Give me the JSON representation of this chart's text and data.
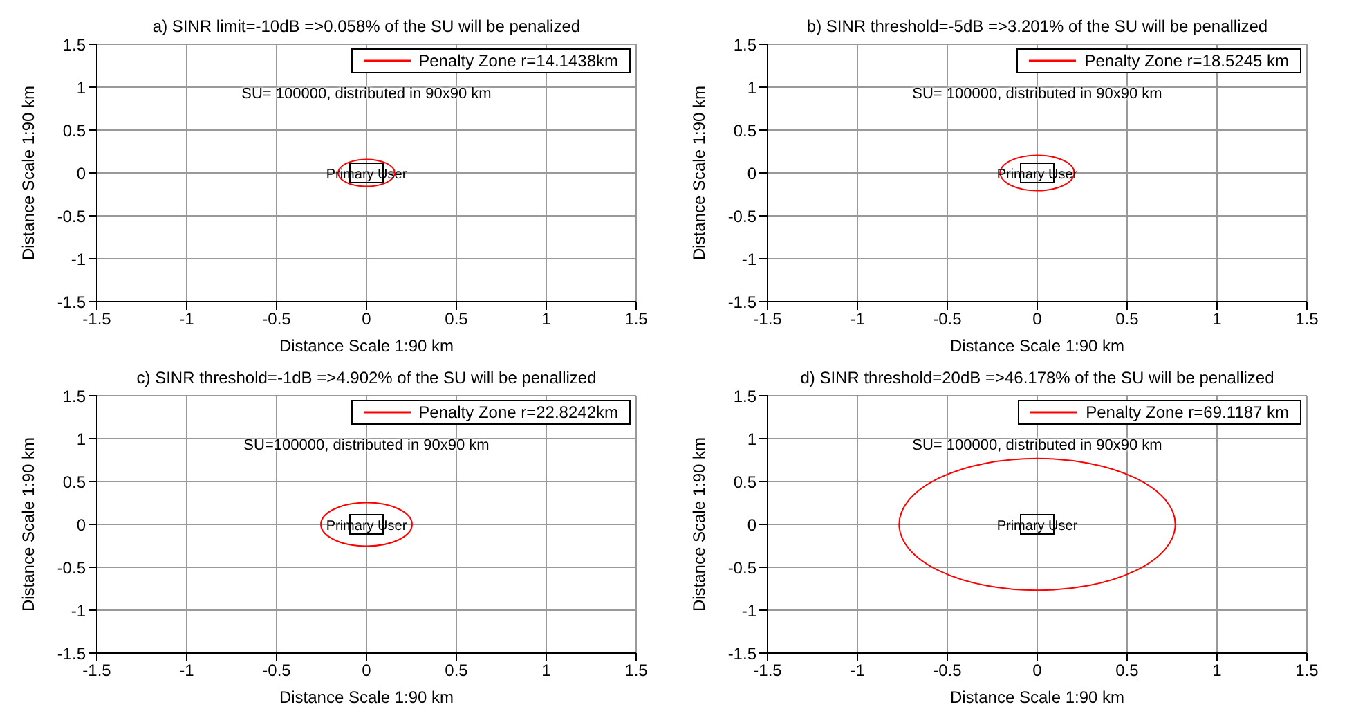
{
  "chart_data": [
    {
      "type": "line",
      "title": "a) SINR limit=-10dB =>0.058% of the SU will be penalized",
      "xlabel": "Distance Scale 1:90 km",
      "ylabel": "Distance Scale 1:90 km",
      "xlim": [
        -1.5,
        1.5
      ],
      "ylim": [
        -1.5,
        1.5
      ],
      "xticks": [
        -1.5,
        -1,
        -0.5,
        0,
        0.5,
        1,
        1.5
      ],
      "yticks": [
        -1.5,
        -1,
        -0.5,
        0,
        0.5,
        1,
        1.5
      ],
      "grid": true,
      "annotations": [
        "SU= 100000, distributed in 90x90 km",
        "Primary User",
        "Penalty Zone r=14.1438km"
      ]
    },
    {
      "type": "line",
      "title": "b) SINR threshold=-5dB =>3.201% of the SU will be penallized",
      "xlabel": "Distance Scale 1:90 km",
      "ylabel": "Distance Scale 1:90 km",
      "xlim": [
        -1.5,
        1.5
      ],
      "ylim": [
        -1.5,
        1.5
      ],
      "xticks": [
        -1.5,
        -1,
        -0.5,
        0,
        0.5,
        1,
        1.5
      ],
      "yticks": [
        -1.5,
        -1,
        -0.5,
        0,
        0.5,
        1,
        1.5
      ],
      "grid": true,
      "annotations": [
        "SU= 100000, distributed in 90x90 km",
        "Primary User",
        "Penalty Zone r=18.5245 km"
      ]
    },
    {
      "type": "line",
      "title": "c) SINR threshold=-1dB =>4.902% of the SU will be penallized",
      "xlabel": "Distance Scale 1:90 km",
      "ylabel": "Distance Scale 1:90 km",
      "xlim": [
        -1.5,
        1.5
      ],
      "ylim": [
        -1.5,
        1.5
      ],
      "xticks": [
        -1.5,
        -1,
        -0.5,
        0,
        0.5,
        1,
        1.5
      ],
      "yticks": [
        -1.5,
        -1,
        -0.5,
        0,
        0.5,
        1,
        1.5
      ],
      "grid": true,
      "annotations": [
        "SU=100000, distributed in 90x90 km",
        "Primary User",
        "Penalty Zone r=22.8242km"
      ]
    },
    {
      "type": "line",
      "title": "d) SINR threshold=20dB =>46.178% of the SU will be penallized",
      "xlabel": "Distance Scale 1:90 km",
      "ylabel": "Distance Scale 1:90 km",
      "xlim": [
        -1.5,
        1.5
      ],
      "ylim": [
        -1.5,
        1.5
      ],
      "xticks": [
        -1.5,
        -1,
        -0.5,
        0,
        0.5,
        1,
        1.5
      ],
      "yticks": [
        -1.5,
        -1,
        -0.5,
        0,
        0.5,
        1,
        1.5
      ],
      "grid": true,
      "annotations": [
        "SU= 100000, distributed in 90x90 km",
        "Primary User",
        "Penalty Zone r=69.1187 km"
      ]
    }
  ]
}
